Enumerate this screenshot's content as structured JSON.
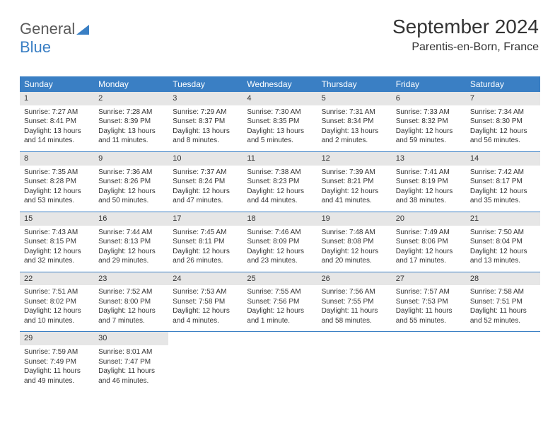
{
  "brand": {
    "part1": "General",
    "part2": "Blue"
  },
  "title": {
    "month": "September 2024",
    "location": "Parentis-en-Born, France"
  },
  "colors": {
    "accent": "#3a7fc4",
    "dayBg": "#e6e6e6",
    "text": "#333333"
  },
  "dayNames": [
    "Sunday",
    "Monday",
    "Tuesday",
    "Wednesday",
    "Thursday",
    "Friday",
    "Saturday"
  ],
  "labels": {
    "sunrise": "Sunrise:",
    "sunset": "Sunset:",
    "daylight": "Daylight:"
  },
  "weeks": [
    [
      {
        "n": "1",
        "sr": "7:27 AM",
        "ss": "8:41 PM",
        "dl": "13 hours and 14 minutes."
      },
      {
        "n": "2",
        "sr": "7:28 AM",
        "ss": "8:39 PM",
        "dl": "13 hours and 11 minutes."
      },
      {
        "n": "3",
        "sr": "7:29 AM",
        "ss": "8:37 PM",
        "dl": "13 hours and 8 minutes."
      },
      {
        "n": "4",
        "sr": "7:30 AM",
        "ss": "8:35 PM",
        "dl": "13 hours and 5 minutes."
      },
      {
        "n": "5",
        "sr": "7:31 AM",
        "ss": "8:34 PM",
        "dl": "13 hours and 2 minutes."
      },
      {
        "n": "6",
        "sr": "7:33 AM",
        "ss": "8:32 PM",
        "dl": "12 hours and 59 minutes."
      },
      {
        "n": "7",
        "sr": "7:34 AM",
        "ss": "8:30 PM",
        "dl": "12 hours and 56 minutes."
      }
    ],
    [
      {
        "n": "8",
        "sr": "7:35 AM",
        "ss": "8:28 PM",
        "dl": "12 hours and 53 minutes."
      },
      {
        "n": "9",
        "sr": "7:36 AM",
        "ss": "8:26 PM",
        "dl": "12 hours and 50 minutes."
      },
      {
        "n": "10",
        "sr": "7:37 AM",
        "ss": "8:24 PM",
        "dl": "12 hours and 47 minutes."
      },
      {
        "n": "11",
        "sr": "7:38 AM",
        "ss": "8:23 PM",
        "dl": "12 hours and 44 minutes."
      },
      {
        "n": "12",
        "sr": "7:39 AM",
        "ss": "8:21 PM",
        "dl": "12 hours and 41 minutes."
      },
      {
        "n": "13",
        "sr": "7:41 AM",
        "ss": "8:19 PM",
        "dl": "12 hours and 38 minutes."
      },
      {
        "n": "14",
        "sr": "7:42 AM",
        "ss": "8:17 PM",
        "dl": "12 hours and 35 minutes."
      }
    ],
    [
      {
        "n": "15",
        "sr": "7:43 AM",
        "ss": "8:15 PM",
        "dl": "12 hours and 32 minutes."
      },
      {
        "n": "16",
        "sr": "7:44 AM",
        "ss": "8:13 PM",
        "dl": "12 hours and 29 minutes."
      },
      {
        "n": "17",
        "sr": "7:45 AM",
        "ss": "8:11 PM",
        "dl": "12 hours and 26 minutes."
      },
      {
        "n": "18",
        "sr": "7:46 AM",
        "ss": "8:09 PM",
        "dl": "12 hours and 23 minutes."
      },
      {
        "n": "19",
        "sr": "7:48 AM",
        "ss": "8:08 PM",
        "dl": "12 hours and 20 minutes."
      },
      {
        "n": "20",
        "sr": "7:49 AM",
        "ss": "8:06 PM",
        "dl": "12 hours and 17 minutes."
      },
      {
        "n": "21",
        "sr": "7:50 AM",
        "ss": "8:04 PM",
        "dl": "12 hours and 13 minutes."
      }
    ],
    [
      {
        "n": "22",
        "sr": "7:51 AM",
        "ss": "8:02 PM",
        "dl": "12 hours and 10 minutes."
      },
      {
        "n": "23",
        "sr": "7:52 AM",
        "ss": "8:00 PM",
        "dl": "12 hours and 7 minutes."
      },
      {
        "n": "24",
        "sr": "7:53 AM",
        "ss": "7:58 PM",
        "dl": "12 hours and 4 minutes."
      },
      {
        "n": "25",
        "sr": "7:55 AM",
        "ss": "7:56 PM",
        "dl": "12 hours and 1 minute."
      },
      {
        "n": "26",
        "sr": "7:56 AM",
        "ss": "7:55 PM",
        "dl": "11 hours and 58 minutes."
      },
      {
        "n": "27",
        "sr": "7:57 AM",
        "ss": "7:53 PM",
        "dl": "11 hours and 55 minutes."
      },
      {
        "n": "28",
        "sr": "7:58 AM",
        "ss": "7:51 PM",
        "dl": "11 hours and 52 minutes."
      }
    ],
    [
      {
        "n": "29",
        "sr": "7:59 AM",
        "ss": "7:49 PM",
        "dl": "11 hours and 49 minutes."
      },
      {
        "n": "30",
        "sr": "8:01 AM",
        "ss": "7:47 PM",
        "dl": "11 hours and 46 minutes."
      },
      null,
      null,
      null,
      null,
      null
    ]
  ]
}
